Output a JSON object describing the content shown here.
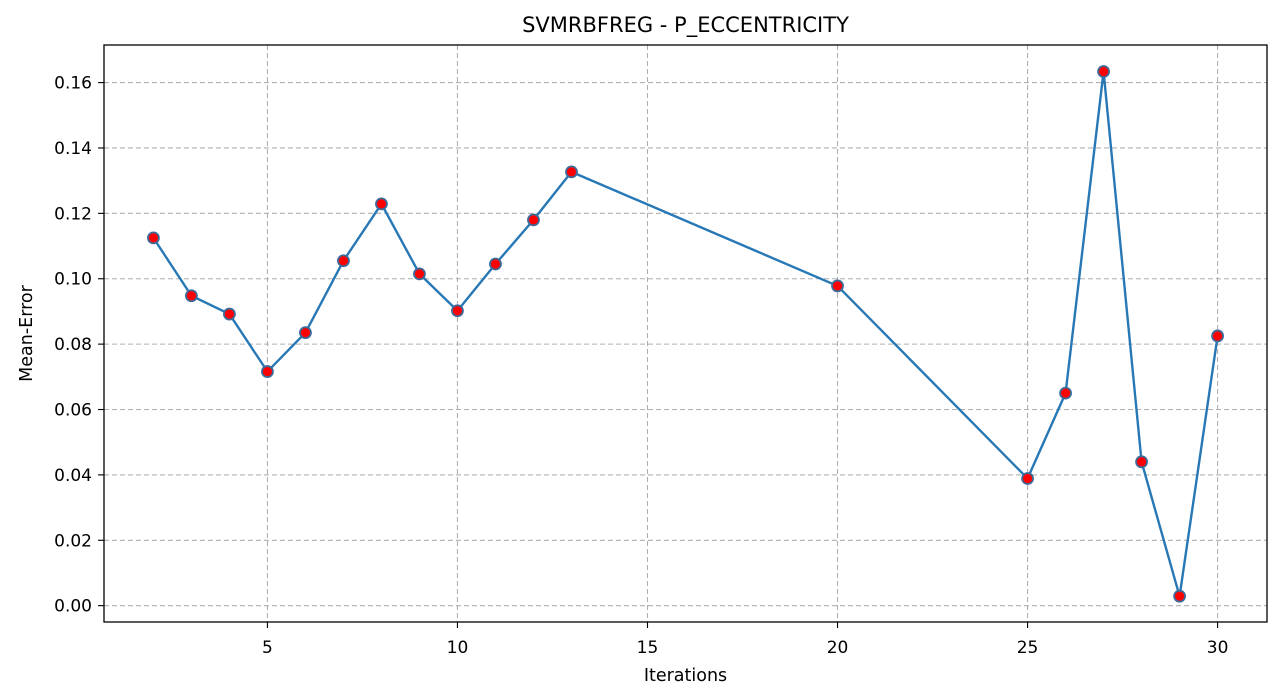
{
  "chart_data": {
    "type": "line",
    "title": "SVMRBFREG - P_ECCENTRICITY",
    "xlabel": "Iterations",
    "ylabel": "Mean-Error",
    "xlim": [
      0.7,
      31.3
    ],
    "ylim": [
      -0.005,
      0.1715
    ],
    "xticks": [
      5,
      10,
      15,
      20,
      25,
      30
    ],
    "xtick_labels": [
      "5",
      "10",
      "15",
      "20",
      "25",
      "30"
    ],
    "yticks": [
      0.0,
      0.02,
      0.04,
      0.06,
      0.08,
      0.1,
      0.12,
      0.14,
      0.16
    ],
    "ytick_labels": [
      "0.00",
      "0.02",
      "0.04",
      "0.06",
      "0.08",
      "0.10",
      "0.12",
      "0.14",
      "0.16"
    ],
    "grid": true,
    "series": [
      {
        "x": [
          2,
          3,
          4,
          5,
          6,
          7,
          8,
          9,
          10,
          11,
          12,
          13,
          20,
          25,
          26,
          27,
          28,
          29,
          30
        ],
        "y": [
          0.1125,
          0.0948,
          0.0892,
          0.0716,
          0.0835,
          0.1055,
          0.1229,
          0.1015,
          0.0902,
          0.1045,
          0.118,
          0.1327,
          0.0978,
          0.0389,
          0.065,
          0.1634,
          0.044,
          0.0029,
          0.0825
        ],
        "line_color": "#2878b5",
        "marker_fill": "#ff0000",
        "marker_edge": "#3d6a99"
      }
    ]
  }
}
